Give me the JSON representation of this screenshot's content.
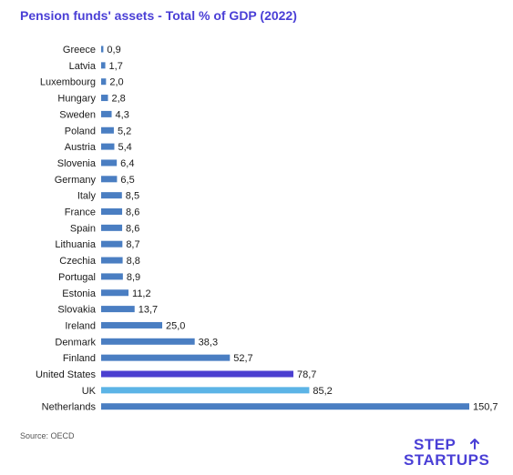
{
  "title": "Pension funds' assets - Total % of GDP (2022)",
  "source": "Source: OECD",
  "logo": {
    "line1": "STEP",
    "line2": "STARTUPS"
  },
  "colors": {
    "title": "#4a3fd6",
    "bar_default": "#4a7ec2",
    "bar_united_states": "#4b3fd0",
    "bar_uk": "#5cb4e6",
    "logo": "#4a3fd6",
    "text": "#1a1a1a"
  },
  "chart_data": {
    "type": "bar",
    "orientation": "horizontal",
    "categories": [
      "Greece",
      "Latvia",
      "Luxembourg",
      "Hungary",
      "Sweden",
      "Poland",
      "Austria",
      "Slovenia",
      "Germany",
      "Italy",
      "France",
      "Spain",
      "Lithuania",
      "Czechia",
      "Portugal",
      "Estonia",
      "Slovakia",
      "Ireland",
      "Denmark",
      "Finland",
      "United States",
      "UK",
      "Netherlands"
    ],
    "values": [
      0.9,
      1.7,
      2.0,
      2.8,
      4.3,
      5.2,
      5.4,
      6.4,
      6.5,
      8.5,
      8.6,
      8.6,
      8.7,
      8.8,
      8.9,
      11.2,
      13.7,
      25.0,
      38.3,
      52.7,
      78.7,
      85.2,
      150.7
    ],
    "value_labels": [
      "0,9",
      "1,7",
      "2,0",
      "2,8",
      "4,3",
      "5,2",
      "5,4",
      "6,4",
      "6,5",
      "8,5",
      "8,6",
      "8,6",
      "8,7",
      "8,8",
      "8,9",
      "11,2",
      "13,7",
      "25,0",
      "38,3",
      "52,7",
      "78,7",
      "85,2",
      "150,7"
    ],
    "highlight": {
      "United States": "#4b3fd0",
      "UK": "#5cb4e6"
    },
    "title": "Pension funds' assets - Total % of GDP (2022)",
    "xlabel": "",
    "ylabel": "",
    "xlim": [
      0,
      150.7
    ],
    "grid": false,
    "legend": "none"
  }
}
